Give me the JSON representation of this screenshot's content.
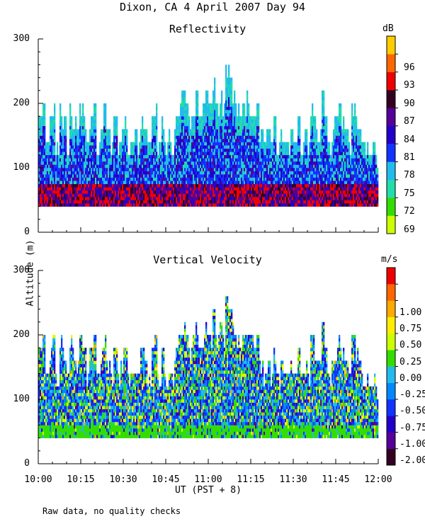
{
  "page_title": "Dixon, CA   4 April 2007   Day  94",
  "shared_ylabel": "Altitude (m)",
  "shared_xlabel": "UT  (PST + 8)",
  "footnote": "Raw data, no quality checks",
  "chart_data": [
    {
      "type": "heatmap",
      "title": "Reflectivity",
      "xlabel": "UT  (PST + 8)",
      "ylabel": "Altitude (m)",
      "xlim": [
        "10:00",
        "12:00"
      ],
      "ylim": [
        0,
        300
      ],
      "y_ticks": [
        "0",
        "100",
        "200",
        "300"
      ],
      "x_ticks": [
        "10:00",
        "10:15",
        "10:30",
        "10:45",
        "11:00",
        "11:15",
        "11:30",
        "11:45",
        "12:00"
      ],
      "data_floor_m": 40,
      "colorbar": {
        "label": "dB",
        "tick_labels": [
          "69",
          "72",
          "75",
          "78",
          "81",
          "84",
          "87",
          "90",
          "93",
          "96"
        ],
        "colors": [
          "#ccff00",
          "#33dd00",
          "#22ddaa",
          "#22bbee",
          "#1133ff",
          "#2200cc",
          "#550099",
          "#330022",
          "#ee0000",
          "#ff6600",
          "#ffcc00"
        ]
      }
    },
    {
      "type": "heatmap",
      "title": "Vertical Velocity",
      "xlabel": "UT  (PST + 8)",
      "ylabel": "Altitude (m)",
      "xlim": [
        "10:00",
        "12:00"
      ],
      "ylim": [
        0,
        300
      ],
      "y_ticks": [
        "0",
        "100",
        "200",
        "300"
      ],
      "x_ticks": [
        "10:00",
        "10:15",
        "10:30",
        "10:45",
        "11:00",
        "11:15",
        "11:30",
        "11:45",
        "12:00"
      ],
      "data_floor_m": 40,
      "colorbar": {
        "label": "m/s",
        "tick_labels": [
          "-2.00",
          "-1.00",
          "-0.75",
          "-0.50",
          "-0.25",
          "0.00",
          "0.25",
          "0.50",
          "0.75",
          "1.00"
        ],
        "colors": [
          "#330022",
          "#550099",
          "#2200cc",
          "#1133ff",
          "#0088ff",
          "#22bbee",
          "#33dd00",
          "#ccff00",
          "#ffee00",
          "#ffaa00",
          "#ff6600",
          "#ee0000"
        ]
      }
    }
  ],
  "profile_top_m": [
    180,
    200,
    140,
    180,
    200,
    140,
    200,
    180,
    140,
    200,
    180,
    160,
    200,
    180,
    140,
    180,
    200,
    140,
    180,
    200,
    160,
    140,
    180,
    140,
    160,
    180,
    140,
    140,
    160,
    140,
    180,
    160,
    140,
    180,
    200,
    140,
    180,
    140,
    160,
    140,
    180,
    200,
    220,
    200,
    180,
    200,
    220,
    180,
    200,
    220,
    200,
    240,
    200,
    220,
    200,
    260,
    240,
    220,
    200,
    180,
    200,
    220,
    200,
    180,
    200,
    160,
    140,
    160,
    140,
    180,
    140,
    160,
    140,
    140,
    160,
    140,
    180,
    140,
    160,
    140,
    200,
    180,
    160,
    220,
    180,
    140,
    160,
    180,
    200,
    180,
    160,
    140,
    200,
    180,
    160,
    140,
    140,
    120,
    140,
    120
  ]
}
